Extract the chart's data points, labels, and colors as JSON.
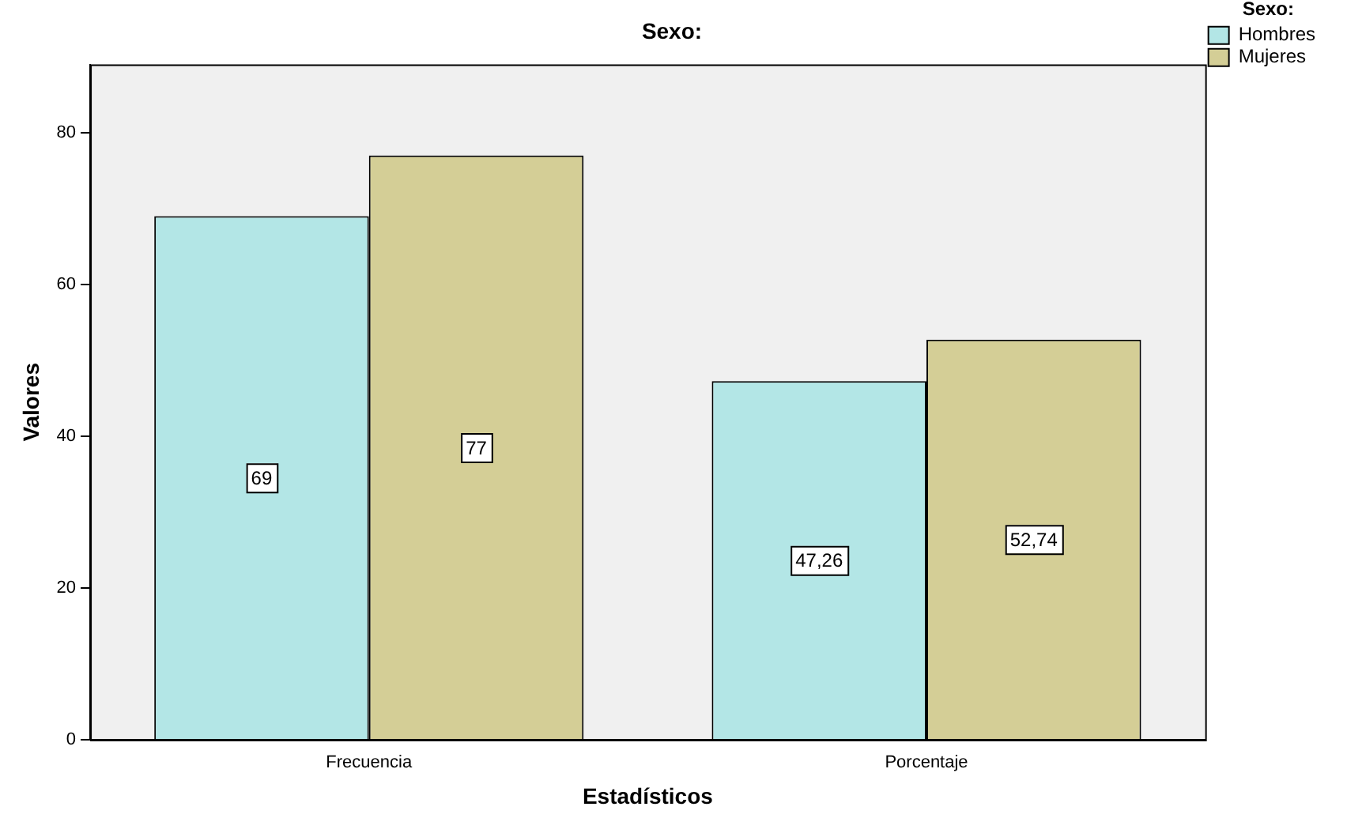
{
  "chart_data": {
    "type": "bar",
    "title": "Sexo:",
    "xlabel": "Estadísticos",
    "ylabel": "Valores",
    "legend_title": "Sexo:",
    "categories": [
      "Frecuencia",
      "Porcentaje"
    ],
    "series": [
      {
        "name": "Hombres",
        "color": "#b3e6e6",
        "values": [
          69,
          47.26
        ],
        "value_labels": [
          "69",
          "47,26"
        ]
      },
      {
        "name": "Mujeres",
        "color": "#d4ce96",
        "values": [
          77,
          52.74
        ],
        "value_labels": [
          "77",
          "52,74"
        ]
      }
    ],
    "ylim": [
      0,
      89
    ],
    "yticks": [
      0,
      20,
      40,
      60,
      80
    ],
    "grid": false,
    "legend": "top right"
  }
}
